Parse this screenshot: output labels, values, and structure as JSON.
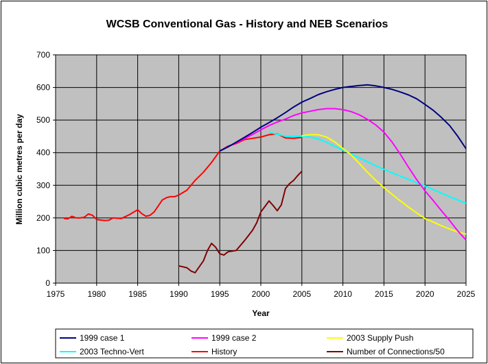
{
  "chart_data": {
    "type": "line",
    "title": "WCSB Conventional Gas - History and NEB Scenarios",
    "xlabel": "Year",
    "ylabel": "Million cubic metres per day",
    "xlim": [
      1975,
      2025
    ],
    "ylim": [
      0,
      700
    ],
    "xticks": [
      1975,
      1980,
      1985,
      1990,
      1995,
      2000,
      2005,
      2010,
      2015,
      2020,
      2025
    ],
    "yticks": [
      0,
      100,
      200,
      300,
      400,
      500,
      600,
      700
    ],
    "grid": true,
    "legend_position": "bottom",
    "series": [
      {
        "name": "1999 case 1",
        "color": "#000080",
        "points": [
          [
            1995,
            405
          ],
          [
            1996,
            418
          ],
          [
            1997,
            432
          ],
          [
            1998,
            447
          ],
          [
            1999,
            462
          ],
          [
            2000,
            478
          ],
          [
            2001,
            492
          ],
          [
            2002,
            507
          ],
          [
            2003,
            523
          ],
          [
            2004,
            540
          ],
          [
            2005,
            555
          ],
          [
            2006,
            566
          ],
          [
            2007,
            578
          ],
          [
            2008,
            587
          ],
          [
            2009,
            594
          ],
          [
            2010,
            600
          ],
          [
            2011,
            603
          ],
          [
            2012,
            606
          ],
          [
            2013,
            608
          ],
          [
            2014,
            605
          ],
          [
            2015,
            600
          ],
          [
            2016,
            594
          ],
          [
            2017,
            586
          ],
          [
            2018,
            577
          ],
          [
            2019,
            565
          ],
          [
            2020,
            548
          ],
          [
            2021,
            530
          ],
          [
            2022,
            508
          ],
          [
            2023,
            483
          ],
          [
            2024,
            450
          ],
          [
            2025,
            412
          ]
        ]
      },
      {
        "name": "1999 case 2",
        "color": "#ff00ff",
        "points": [
          [
            1995,
            405
          ],
          [
            1996,
            418
          ],
          [
            1997,
            430
          ],
          [
            1998,
            443
          ],
          [
            1999,
            456
          ],
          [
            2000,
            470
          ],
          [
            2001,
            483
          ],
          [
            2002,
            494
          ],
          [
            2003,
            503
          ],
          [
            2004,
            514
          ],
          [
            2005,
            522
          ],
          [
            2006,
            527
          ],
          [
            2007,
            532
          ],
          [
            2008,
            535
          ],
          [
            2009,
            535
          ],
          [
            2010,
            532
          ],
          [
            2011,
            526
          ],
          [
            2012,
            516
          ],
          [
            2013,
            502
          ],
          [
            2014,
            485
          ],
          [
            2015,
            463
          ],
          [
            2016,
            432
          ],
          [
            2017,
            395
          ],
          [
            2018,
            355
          ],
          [
            2019,
            317
          ],
          [
            2020,
            283
          ],
          [
            2021,
            253
          ],
          [
            2022,
            222
          ],
          [
            2023,
            192
          ],
          [
            2024,
            160
          ],
          [
            2025,
            132
          ]
        ]
      },
      {
        "name": "2003 Supply Push",
        "color": "#ffff00",
        "points": [
          [
            2005,
            452
          ],
          [
            2006,
            455
          ],
          [
            2007,
            455
          ],
          [
            2008,
            448
          ],
          [
            2009,
            433
          ],
          [
            2010,
            413
          ],
          [
            2011,
            393
          ],
          [
            2012,
            367
          ],
          [
            2013,
            340
          ],
          [
            2014,
            315
          ],
          [
            2015,
            293
          ],
          [
            2016,
            272
          ],
          [
            2017,
            252
          ],
          [
            2018,
            233
          ],
          [
            2019,
            215
          ],
          [
            2020,
            198
          ],
          [
            2021,
            187
          ],
          [
            2022,
            176
          ],
          [
            2023,
            166
          ],
          [
            2024,
            157
          ],
          [
            2025,
            150
          ]
        ]
      },
      {
        "name": "2003 Techno-Vert",
        "color": "#00ffff",
        "points": [
          [
            2001,
            462
          ],
          [
            2002,
            457
          ],
          [
            2003,
            450
          ],
          [
            2004,
            450
          ],
          [
            2005,
            450
          ],
          [
            2006,
            448
          ],
          [
            2007,
            442
          ],
          [
            2008,
            432
          ],
          [
            2009,
            420
          ],
          [
            2010,
            408
          ],
          [
            2011,
            396
          ],
          [
            2012,
            384
          ],
          [
            2013,
            372
          ],
          [
            2014,
            360
          ],
          [
            2015,
            349
          ],
          [
            2016,
            338
          ],
          [
            2017,
            328
          ],
          [
            2018,
            318
          ],
          [
            2019,
            308
          ],
          [
            2020,
            298
          ],
          [
            2021,
            287
          ],
          [
            2022,
            276
          ],
          [
            2023,
            265
          ],
          [
            2024,
            255
          ],
          [
            2025,
            245
          ]
        ]
      },
      {
        "name": "History",
        "color": "#ff0000",
        "points": [
          [
            1976,
            198
          ],
          [
            1976.5,
            197
          ],
          [
            1977,
            205
          ],
          [
            1977.5,
            200
          ],
          [
            1978,
            200
          ],
          [
            1978.5,
            202
          ],
          [
            1979,
            212
          ],
          [
            1979.5,
            208
          ],
          [
            1980,
            195
          ],
          [
            1981,
            192
          ],
          [
            1981.5,
            193
          ],
          [
            1982,
            200
          ],
          [
            1983,
            198
          ],
          [
            1984,
            210
          ],
          [
            1985,
            225
          ],
          [
            1985.5,
            213
          ],
          [
            1986,
            205
          ],
          [
            1986.5,
            208
          ],
          [
            1987,
            218
          ],
          [
            1988,
            255
          ],
          [
            1988.5,
            262
          ],
          [
            1989,
            265
          ],
          [
            1989.5,
            265
          ],
          [
            1990,
            270
          ],
          [
            1991,
            285
          ],
          [
            1992,
            315
          ],
          [
            1993,
            340
          ],
          [
            1994,
            370
          ],
          [
            1995,
            405
          ],
          [
            1996,
            420
          ],
          [
            1997,
            428
          ],
          [
            1998,
            440
          ],
          [
            1999,
            444
          ],
          [
            2000,
            448
          ],
          [
            2001,
            455
          ],
          [
            2002,
            458
          ],
          [
            2003,
            445
          ],
          [
            2004,
            444
          ],
          [
            2005,
            447
          ]
        ]
      },
      {
        "name": "Number of Connections/50",
        "color": "#800000",
        "points": [
          [
            1990,
            53
          ],
          [
            1990.5,
            50
          ],
          [
            1991,
            47
          ],
          [
            1991.5,
            37
          ],
          [
            1992,
            32
          ],
          [
            1992.5,
            50
          ],
          [
            1993,
            68
          ],
          [
            1993.5,
            100
          ],
          [
            1994,
            122
          ],
          [
            1994.5,
            110
          ],
          [
            1995,
            90
          ],
          [
            1995.5,
            86
          ],
          [
            1996,
            96
          ],
          [
            1997,
            100
          ],
          [
            1998,
            130
          ],
          [
            1999,
            162
          ],
          [
            1999.5,
            185
          ],
          [
            2000,
            218
          ],
          [
            2001,
            252
          ],
          [
            2001.5,
            238
          ],
          [
            2002,
            222
          ],
          [
            2002.5,
            240
          ],
          [
            2003,
            290
          ],
          [
            2003.5,
            305
          ],
          [
            2004,
            315
          ],
          [
            2004.5,
            330
          ],
          [
            2005,
            343
          ]
        ]
      }
    ]
  }
}
